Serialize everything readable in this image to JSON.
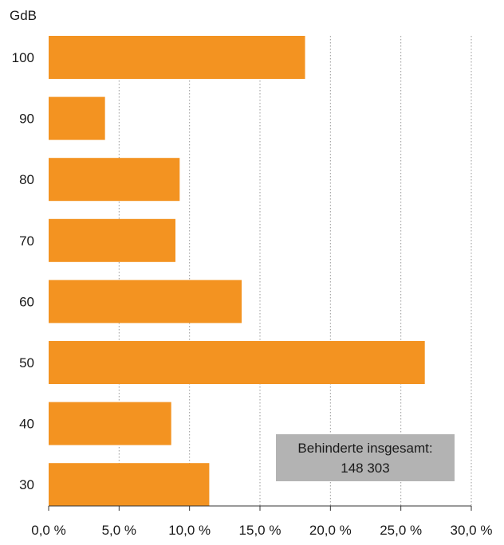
{
  "chart_data": {
    "type": "bar",
    "orientation": "horizontal",
    "y_unit_label": "GdB",
    "categories": [
      "100",
      "90",
      "80",
      "70",
      "60",
      "50",
      "40",
      "30"
    ],
    "values": [
      18.2,
      4.0,
      9.3,
      9.0,
      13.7,
      26.7,
      8.7,
      11.4
    ],
    "xlim": [
      0,
      30
    ],
    "xticks": [
      0,
      5,
      10,
      15,
      20,
      25,
      30
    ],
    "xtick_labels": [
      "0,0 %",
      "5,0 %",
      "10,0 %",
      "15,0 %",
      "20,0 %",
      "25,0 %",
      "30,0 %"
    ],
    "grid": "vertical dotted",
    "annotation": {
      "line1": "Behinderte insgesamt:",
      "line2": "148 303"
    },
    "colors": {
      "bar": "#f39321",
      "annotation_box": "#b3b3b3",
      "grid": "#999999"
    }
  }
}
